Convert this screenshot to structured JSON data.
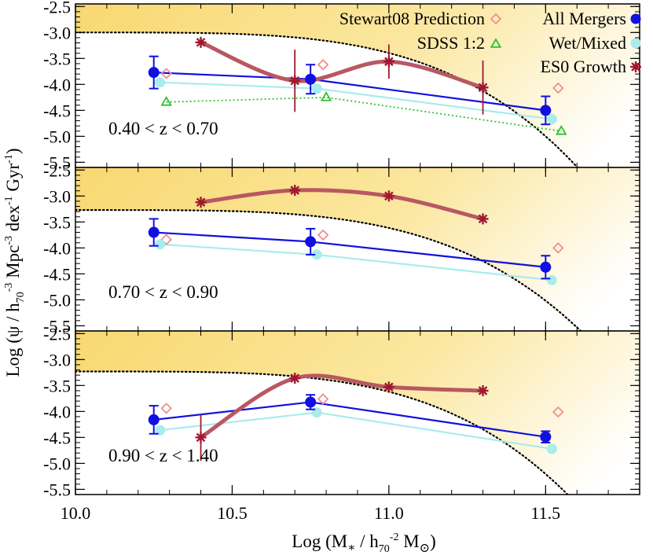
{
  "chart_data": {
    "type": "line",
    "xlabel": "Log (M∗ / h70⁻² M⊙)",
    "ylabel": "Log (ψ / h70⁻³ Mpc⁻³ dex⁻¹ Gyr⁻¹)",
    "xlim": [
      10.0,
      11.8
    ],
    "ylim": [
      -5.6,
      -2.45
    ],
    "x_ticks": [
      "10.0",
      "10.5",
      "11.0",
      "11.5"
    ],
    "y_ticks": [
      "-2.5",
      "-3.0",
      "-3.5",
      "-4.0",
      "-4.5",
      "-5.0",
      "-5.5"
    ],
    "legend": {
      "placement": "top",
      "entries": [
        {
          "label": "Stewart08 Prediction",
          "series": "stewart"
        },
        {
          "label": "SDSS 1:2",
          "series": "sdss"
        },
        {
          "label": "All Mergers",
          "series": "all"
        },
        {
          "label": "Wet/Mixed",
          "series": "wet"
        },
        {
          "label": "ES0 Growth",
          "series": "es0"
        }
      ]
    },
    "colors": {
      "all": "#1010e0",
      "wet": "#a8ecec",
      "stewart": "#f08e8e",
      "sdss": "#30c030",
      "es0": "#b85862",
      "es0_marker": "#a01830",
      "shade": "#f8d870"
    },
    "panels": [
      {
        "label": "0.40 < z < 0.70",
        "envelope": {
          "a": -3.0,
          "k": 0.395
        },
        "all_mergers": [
          {
            "x": 10.25,
            "y": -3.77,
            "err": 0.31
          },
          {
            "x": 10.75,
            "y": -3.9,
            "err": 0.28
          },
          {
            "x": 11.5,
            "y": -4.5,
            "err": 0.27
          }
        ],
        "wet_mixed": [
          {
            "x": 10.27,
            "y": -3.96
          },
          {
            "x": 10.77,
            "y": -4.08
          },
          {
            "x": 11.52,
            "y": -4.67
          }
        ],
        "stewart08": [
          {
            "x": 10.29,
            "y": -3.79
          },
          {
            "x": 10.79,
            "y": -3.62
          },
          {
            "x": 11.54,
            "y": -4.07
          }
        ],
        "sdss": [
          {
            "x": 10.29,
            "y": -4.34
          },
          {
            "x": 10.8,
            "y": -4.25
          },
          {
            "x": 11.55,
            "y": -4.9
          }
        ],
        "es0_growth": [
          {
            "x": 10.4,
            "y": -3.19,
            "err": 0
          },
          {
            "x": 10.7,
            "y": -3.93,
            "err": 0.6
          },
          {
            "x": 11.0,
            "y": -3.56,
            "err": 0.33
          },
          {
            "x": 11.3,
            "y": -4.06,
            "err": 0.52
          }
        ]
      },
      {
        "label": "0.70 < z < 0.90",
        "envelope": {
          "a": -3.27,
          "k": 0.345
        },
        "all_mergers": [
          {
            "x": 10.25,
            "y": -3.7,
            "err": 0.26
          },
          {
            "x": 10.75,
            "y": -3.88,
            "err": 0.25
          },
          {
            "x": 11.5,
            "y": -4.37,
            "err": 0.22
          }
        ],
        "wet_mixed": [
          {
            "x": 10.27,
            "y": -3.93
          },
          {
            "x": 10.77,
            "y": -4.13
          },
          {
            "x": 11.52,
            "y": -4.62
          }
        ],
        "stewart08": [
          {
            "x": 10.29,
            "y": -3.84
          },
          {
            "x": 10.79,
            "y": -3.75
          },
          {
            "x": 11.54,
            "y": -4.0
          }
        ],
        "sdss": [],
        "es0_growth": [
          {
            "x": 10.4,
            "y": -3.12,
            "err": 0
          },
          {
            "x": 10.7,
            "y": -2.89,
            "err": 0
          },
          {
            "x": 11.0,
            "y": -3.0,
            "err": 0
          },
          {
            "x": 11.3,
            "y": -3.44,
            "err": 0
          }
        ]
      },
      {
        "label": "0.90 < z < 1.40",
        "envelope": {
          "a": -3.23,
          "k": 0.39
        },
        "all_mergers": [
          {
            "x": 10.25,
            "y": -4.16,
            "err": 0.27
          },
          {
            "x": 10.75,
            "y": -3.82,
            "err": 0.14
          },
          {
            "x": 11.5,
            "y": -4.49,
            "err": 0.11
          }
        ],
        "wet_mixed": [
          {
            "x": 10.27,
            "y": -4.36
          },
          {
            "x": 10.77,
            "y": -4.02
          },
          {
            "x": 11.52,
            "y": -4.72
          }
        ],
        "stewart08": [
          {
            "x": 10.29,
            "y": -3.94
          },
          {
            "x": 10.79,
            "y": -3.76
          },
          {
            "x": 11.54,
            "y": -4.01
          }
        ],
        "sdss": [],
        "es0_growth": [
          {
            "x": 10.4,
            "y": -4.5,
            "err": 0.45
          },
          {
            "x": 10.7,
            "y": -3.36,
            "err": 0
          },
          {
            "x": 11.0,
            "y": -3.53,
            "err": 0
          },
          {
            "x": 11.3,
            "y": -3.6,
            "err": 0
          }
        ]
      }
    ]
  }
}
